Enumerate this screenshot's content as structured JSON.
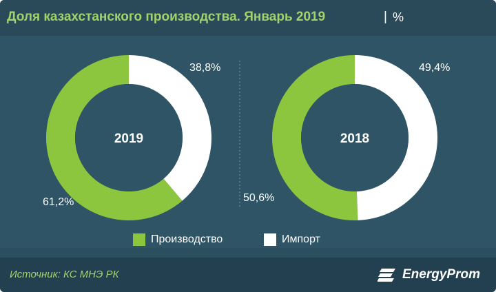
{
  "header": {
    "title": "Доля казахстанского производства. Январь 2019",
    "separator": "|",
    "unit": "%"
  },
  "legend": {
    "items": [
      {
        "label": "Производство",
        "color": "#8cc63f"
      },
      {
        "label": "Импорт",
        "color": "#ffffff"
      }
    ]
  },
  "footer": {
    "source": "Источник: КС МНЭ РК",
    "brand": "EnergyProm"
  },
  "colors": {
    "production": "#8cc63f",
    "import": "#ffffff",
    "background": "#2e5465",
    "title": "#a3d16b"
  },
  "chart_data": [
    {
      "type": "pie",
      "variant": "donut",
      "center_label": "2019",
      "categories": [
        "Производство",
        "Импорт"
      ],
      "values": [
        61.2,
        38.8
      ],
      "value_labels": [
        "61,2%",
        "38,8%"
      ]
    },
    {
      "type": "pie",
      "variant": "donut",
      "center_label": "2018",
      "categories": [
        "Производство",
        "Импорт"
      ],
      "values": [
        50.6,
        49.4
      ],
      "value_labels": [
        "50,6%",
        "49,4%"
      ]
    }
  ]
}
